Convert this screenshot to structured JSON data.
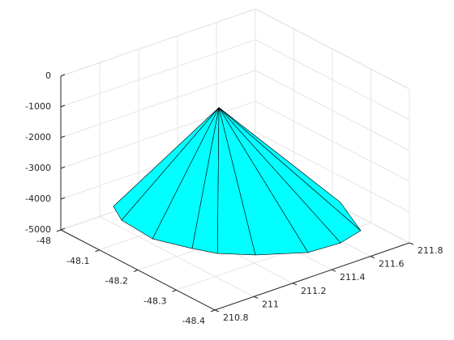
{
  "chart_data": {
    "type": "surface",
    "color": "#00ffff",
    "edge_color": "#000000",
    "grid": true,
    "xlim": [
      -48.4,
      -48
    ],
    "xticks": [
      -48,
      -48.1,
      -48.2,
      -48.3,
      -48.4
    ],
    "ylim": [
      210.8,
      211.8
    ],
    "yticks": [
      210.8,
      211,
      211.2,
      211.4,
      211.6,
      211.8
    ],
    "zlim": [
      -5000,
      0
    ],
    "zticks": [
      -5000,
      -4000,
      -3000,
      -2000,
      -1000,
      0
    ],
    "apex": {
      "x": -48.166,
      "y": 211.284,
      "z": -1000
    },
    "ring": {
      "x": [
        -48.03,
        -48.08,
        -48.168,
        -48.238,
        -48.279,
        -48.323,
        -48.37,
        -48.375,
        -48.359,
        -48.253,
        -48.142,
        -48.059,
        -48.012,
        -48.01
      ],
      "y": [
        211.011,
        210.954,
        210.939,
        211.004,
        211.053,
        211.161,
        211.338,
        211.496,
        211.631,
        211.736,
        211.706,
        211.579,
        211.379,
        211.155
      ],
      "z": [
        -4500,
        -4500,
        -4500,
        -4500,
        -4500,
        -4500,
        -4500,
        -4500,
        -4500,
        -4500,
        -4500,
        -4500,
        -4500,
        -4500
      ]
    }
  }
}
